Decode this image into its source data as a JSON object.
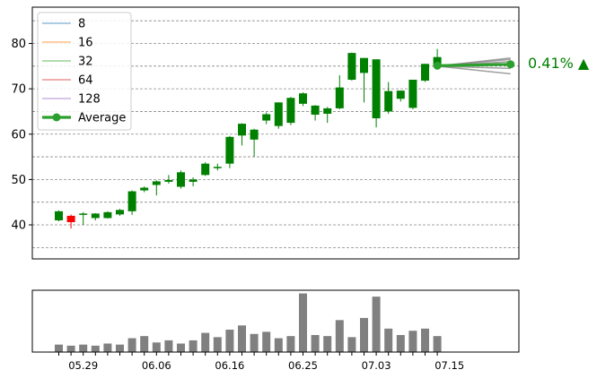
{
  "chart_data": {
    "type": "candlestick",
    "price_axis": {
      "ylim": [
        32.5,
        88
      ],
      "ticks": [
        40,
        50,
        60,
        70,
        80
      ],
      "grid": "dashed horizontal",
      "grid_lines": [
        35,
        40,
        45,
        50,
        55,
        60,
        65,
        70,
        75,
        80,
        85
      ]
    },
    "candles": [
      {
        "o": 41.0,
        "h": 43.2,
        "l": 40.8,
        "c": 43.0
      },
      {
        "o": 42.0,
        "h": 42.3,
        "l": 39.2,
        "c": 40.6
      },
      {
        "o": 42.5,
        "h": 42.8,
        "l": 40.0,
        "c": 42.5
      },
      {
        "o": 41.5,
        "h": 42.6,
        "l": 41.0,
        "c": 42.5
      },
      {
        "o": 41.5,
        "h": 43.0,
        "l": 41.4,
        "c": 42.8
      },
      {
        "o": 42.3,
        "h": 43.5,
        "l": 42.0,
        "c": 43.3
      },
      {
        "o": 43.0,
        "h": 47.6,
        "l": 42.2,
        "c": 47.4
      },
      {
        "o": 47.6,
        "h": 48.5,
        "l": 47.2,
        "c": 48.2
      },
      {
        "o": 48.8,
        "h": 49.8,
        "l": 46.5,
        "c": 49.6
      },
      {
        "o": 49.5,
        "h": 51.0,
        "l": 49.1,
        "c": 49.9
      },
      {
        "o": 48.4,
        "h": 52.0,
        "l": 48.0,
        "c": 51.6
      },
      {
        "o": 49.5,
        "h": 50.5,
        "l": 48.5,
        "c": 50.0
      },
      {
        "o": 51.0,
        "h": 53.8,
        "l": 50.8,
        "c": 53.5
      },
      {
        "o": 52.5,
        "h": 53.5,
        "l": 52.0,
        "c": 52.8
      },
      {
        "o": 53.5,
        "h": 59.6,
        "l": 52.5,
        "c": 59.4
      },
      {
        "o": 59.7,
        "h": 62.4,
        "l": 57.5,
        "c": 62.3
      },
      {
        "o": 58.8,
        "h": 61.2,
        "l": 55.0,
        "c": 61.0
      },
      {
        "o": 63.0,
        "h": 64.8,
        "l": 62.2,
        "c": 64.4
      },
      {
        "o": 61.8,
        "h": 67.0,
        "l": 61.2,
        "c": 67.0
      },
      {
        "o": 62.5,
        "h": 68.2,
        "l": 62.0,
        "c": 68.0
      },
      {
        "o": 66.7,
        "h": 69.2,
        "l": 66.2,
        "c": 69.0
      },
      {
        "o": 64.3,
        "h": 66.4,
        "l": 63.0,
        "c": 66.3
      },
      {
        "o": 64.5,
        "h": 66.0,
        "l": 62.5,
        "c": 65.7
      },
      {
        "o": 65.7,
        "h": 73.0,
        "l": 65.5,
        "c": 70.3
      },
      {
        "o": 72.0,
        "h": 78.0,
        "l": 71.8,
        "c": 77.9
      },
      {
        "o": 73.5,
        "h": 76.8,
        "l": 67.0,
        "c": 76.8
      },
      {
        "o": 63.5,
        "h": 76.5,
        "l": 61.5,
        "c": 76.5
      },
      {
        "o": 65.0,
        "h": 71.5,
        "l": 64.5,
        "c": 69.5
      },
      {
        "o": 67.8,
        "h": 69.6,
        "l": 67.2,
        "c": 69.6
      },
      {
        "o": 65.8,
        "h": 72.0,
        "l": 65.5,
        "c": 72.0
      },
      {
        "o": 71.8,
        "h": 75.5,
        "l": 71.5,
        "c": 75.5
      },
      {
        "o": 75.0,
        "h": 78.8,
        "l": 74.5,
        "c": 77.0
      }
    ],
    "up_color": "#008000",
    "down_color": "#ff0000",
    "forecast_lines": [
      {
        "name": "8",
        "color": "#1f77b4",
        "start": 75.0,
        "end": 76.0
      },
      {
        "name": "16",
        "color": "#ff7f0e",
        "start": 75.0,
        "end": 76.5
      },
      {
        "name": "32",
        "color": "#2ca02c",
        "start": 75.0,
        "end": 74.5
      },
      {
        "name": "64",
        "color": "#d62728",
        "start": 75.0,
        "end": 76.8
      },
      {
        "name": "128",
        "color": "#9467bd",
        "start": 75.0,
        "end": 73.3
      }
    ],
    "average": {
      "name": "Average",
      "color": "#2ca02c",
      "start": 75.1,
      "end": 75.4
    },
    "forecast_horizon": 6,
    "forecast_label": "0.41% ▲",
    "forecast_label_color": "#008000",
    "legend_position": "top-left",
    "volume": {
      "values": [
        7,
        6,
        7,
        6,
        8,
        7,
        13,
        15,
        9,
        11,
        8,
        11,
        18,
        14,
        21,
        25,
        17,
        19,
        13,
        15,
        55,
        16,
        15,
        30,
        14,
        32,
        52,
        22,
        16,
        20,
        22,
        15
      ],
      "color": "#808080",
      "ylim": [
        0,
        58
      ]
    },
    "x_tick_labels": [
      {
        "index": 2,
        "label": "05.29"
      },
      {
        "index": 8,
        "label": "06.06"
      },
      {
        "index": 14,
        "label": "06.16"
      },
      {
        "index": 20,
        "label": "06.25"
      },
      {
        "index": 26,
        "label": "07.03"
      },
      {
        "index": 32,
        "label": "07.15"
      }
    ]
  }
}
